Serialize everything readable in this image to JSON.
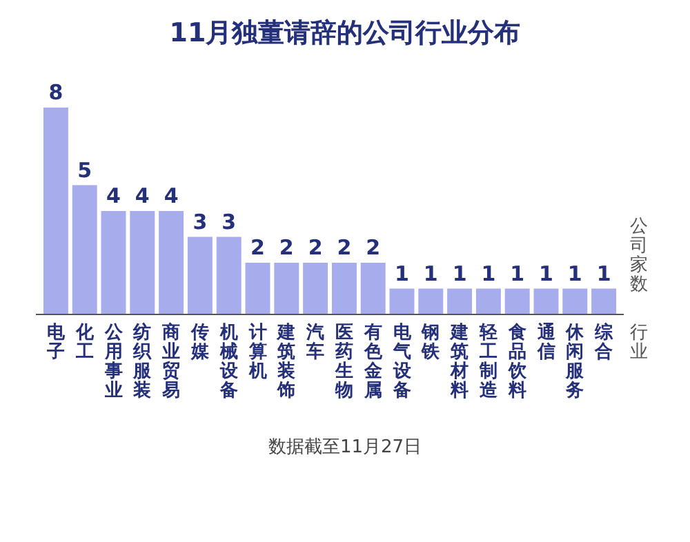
{
  "chart_data": {
    "type": "bar",
    "title": "11月独董请辞的公司行业分布",
    "xlabel": "行业",
    "ylabel": "公司家数",
    "categories": [
      "电子",
      "化工",
      "公用事业",
      "纺织服装",
      "商业贸易",
      "传媒",
      "机械设备",
      "计算机",
      "建筑装饰",
      "汽车",
      "医药生物",
      "有色金属",
      "电气设备",
      "钢铁",
      "建筑材料",
      "轻工制造",
      "食品饮料",
      "通信",
      "休闲服务",
      "综合"
    ],
    "values": [
      8,
      5,
      4,
      4,
      4,
      3,
      3,
      2,
      2,
      2,
      2,
      2,
      1,
      1,
      1,
      1,
      1,
      1,
      1,
      1
    ],
    "color": "#a7acec",
    "data_labels": true,
    "annotations": [
      "数据截至11月27日"
    ]
  }
}
